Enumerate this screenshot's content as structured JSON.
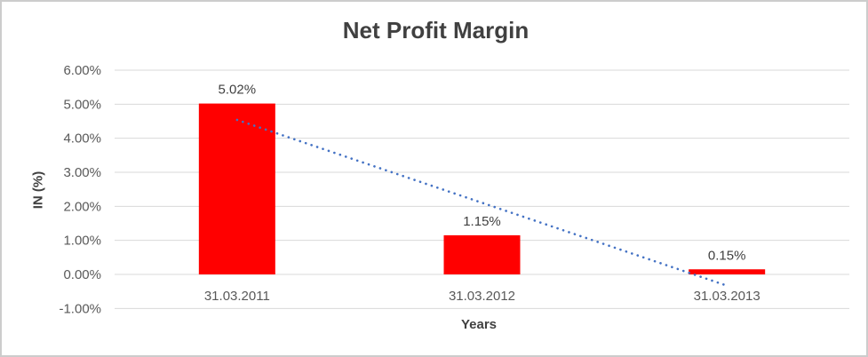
{
  "window": {
    "background": "#FFFFFF",
    "border_color": "#CCCCCC"
  },
  "chart_data": {
    "type": "bar",
    "title": "Net Profit Margin",
    "xlabel": "Years",
    "ylabel": "IN (%)",
    "categories": [
      "31.03.2011",
      "31.03.2012",
      "31.03.2013"
    ],
    "values": [
      5.02,
      1.15,
      0.15
    ],
    "data_labels": [
      "5.02%",
      "1.15%",
      "0.15%"
    ],
    "ylim": [
      -1,
      6
    ],
    "y_ticks": [
      {
        "value": 6,
        "label": "6.00%"
      },
      {
        "value": 5,
        "label": "5.00%"
      },
      {
        "value": 4,
        "label": "4.00%"
      },
      {
        "value": 3,
        "label": "3.00%"
      },
      {
        "value": 2,
        "label": "2.00%"
      },
      {
        "value": 1,
        "label": "1.00%"
      },
      {
        "value": 0,
        "label": "0.00%"
      },
      {
        "value": -1,
        "label": "-1.00%"
      }
    ],
    "grid": true,
    "legend": "none",
    "bar_color": "#FF0000",
    "gridline_color": "#D9D9D9",
    "tick_label_color": "#595959",
    "data_label_color": "#404040",
    "title_color": "#404040",
    "trendline": {
      "type": "linear",
      "style": "dotted",
      "color": "#4472C4",
      "start_value": 4.54,
      "end_value": -0.33
    }
  }
}
